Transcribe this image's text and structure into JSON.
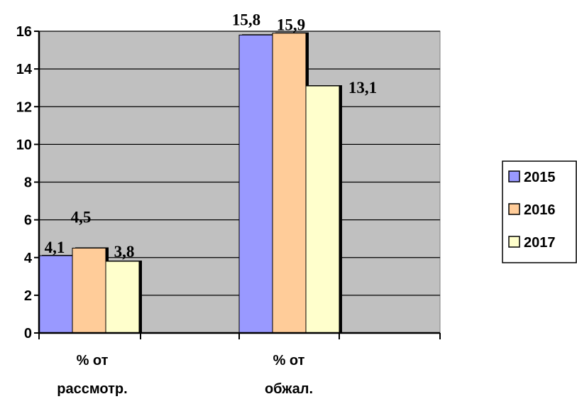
{
  "chart_data": {
    "type": "bar",
    "categories": [
      [
        "% от",
        "рассмотр."
      ],
      [
        "% от",
        "обжал."
      ]
    ],
    "series": [
      {
        "name": "2015",
        "values": [
          4.1,
          15.8
        ],
        "labels": [
          "4,1",
          "15,8"
        ],
        "color": "#9999ff"
      },
      {
        "name": "2016",
        "values": [
          4.5,
          15.9
        ],
        "labels": [
          "4,5",
          "15,9"
        ],
        "color": "#ffcc99"
      },
      {
        "name": "2017",
        "values": [
          3.8,
          13.1
        ],
        "labels": [
          "3,8",
          "13,1"
        ],
        "color": "#ffffcc"
      }
    ],
    "y_ticks": [
      "0",
      "2",
      "4",
      "6",
      "8",
      "10",
      "12",
      "14",
      "16"
    ],
    "ylim": [
      0,
      16
    ],
    "grid": true,
    "plot_background": "#c0c0c0",
    "legend_position": "right"
  }
}
